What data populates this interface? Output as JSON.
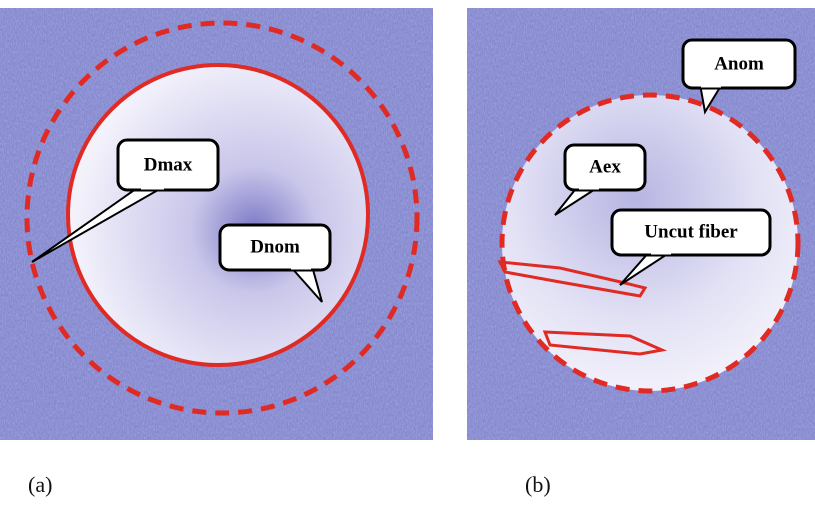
{
  "panels": [
    {
      "label": "(a)",
      "callouts": [
        "Dmax",
        "Dnom"
      ]
    },
    {
      "label": "(b)",
      "callouts": [
        "Anom",
        "Aex",
        "Uncut fiber"
      ]
    }
  ]
}
